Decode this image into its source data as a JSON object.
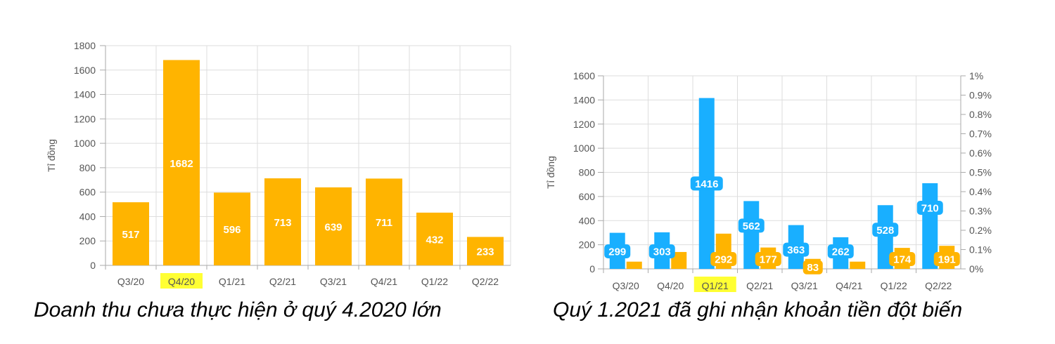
{
  "colors": {
    "orange": "#FFB400",
    "blue": "#19AFFF",
    "grid": "#dddddd",
    "axis": "#aaaaaa",
    "highlight": "#FFFF33"
  },
  "captions": {
    "left": "Doanh thu chưa thực hiện ở quý 4.2020 lớn",
    "right": "Quý 1.2021 đã ghi nhận khoản tiền đột biến"
  },
  "chart_data": [
    {
      "type": "bar",
      "categories": [
        "Q3/20",
        "Q4/20",
        "Q1/21",
        "Q2/21",
        "Q3/21",
        "Q4/21",
        "Q1/22",
        "Q2/22"
      ],
      "highlight_category": "Q4/20",
      "series": [
        {
          "values": [
            517,
            1682,
            596,
            713,
            639,
            711,
            432,
            233
          ],
          "color": "#FFB400"
        }
      ],
      "ylabel": "Tỉ đồng",
      "ylim": [
        0,
        1800
      ],
      "yticks": [
        0,
        200,
        400,
        600,
        800,
        1000,
        1200,
        1400,
        1600,
        1800
      ],
      "grid": true
    },
    {
      "type": "bar",
      "categories": [
        "Q3/20",
        "Q4/20",
        "Q1/21",
        "Q2/21",
        "Q3/21",
        "Q4/21",
        "Q1/22",
        "Q2/22"
      ],
      "highlight_category": "Q1/21",
      "series": [
        {
          "values": [
            299,
            303,
            1416,
            562,
            363,
            262,
            528,
            710
          ],
          "color": "#19AFFF",
          "labeled": true
        },
        {
          "values": [
            60,
            140,
            292,
            177,
            83,
            60,
            174,
            191
          ],
          "color": "#FFB400",
          "labels": [
            "",
            "",
            "292",
            "177",
            "83",
            "",
            "174",
            "191"
          ]
        }
      ],
      "ylabel": "Tỉ đồng",
      "ylim": [
        0,
        1600
      ],
      "yticks": [
        0,
        200,
        400,
        600,
        800,
        1000,
        1200,
        1400,
        1600
      ],
      "y2ticks": [
        "0%",
        "0.1%",
        "0.2%",
        "0.3%",
        "0.4%",
        "0.5%",
        "0.6%",
        "0.7%",
        "0.8%",
        "0.9%",
        "1%"
      ],
      "grid": true
    }
  ]
}
